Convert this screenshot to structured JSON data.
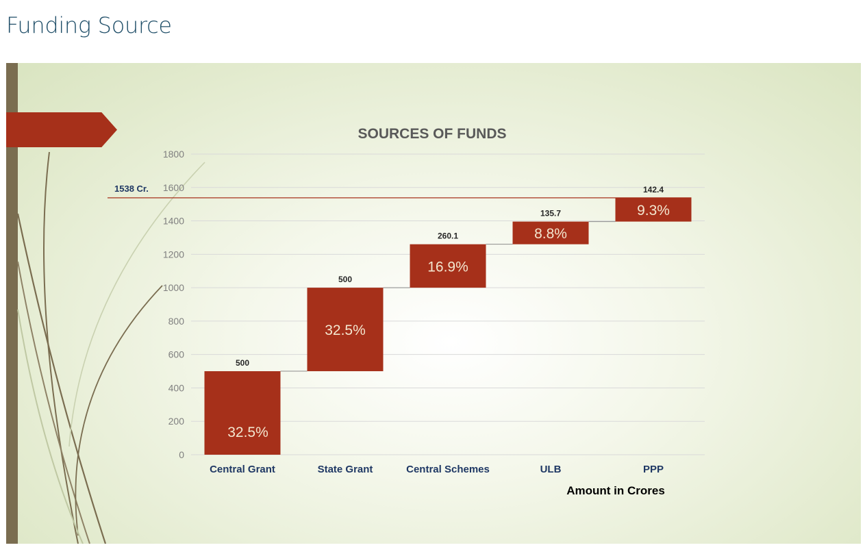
{
  "page": {
    "heading": "Funding Source"
  },
  "colors": {
    "bar": "#a6301a",
    "accent_bar": "#7a6d50",
    "flag": "#a6301a",
    "reference_line": "#a6301a"
  },
  "chart_data": {
    "type": "bar",
    "variant": "waterfall",
    "title": "SOURCES OF FUNDS",
    "categories": [
      "Central Grant",
      "State Grant",
      "Central Schemes",
      "ULB",
      "PPP"
    ],
    "values": [
      500,
      500,
      260.1,
      135.7,
      142.4
    ],
    "value_labels": [
      "500",
      "500",
      "260.1",
      "135.7",
      "142.4"
    ],
    "percent_labels": [
      "32.5%",
      "32.5%",
      "16.9%",
      "8.8%",
      "9.3%"
    ],
    "ylim": [
      0,
      1800
    ],
    "yticks": [
      0,
      200,
      400,
      600,
      800,
      1000,
      1200,
      1400,
      1600,
      1800
    ],
    "reference_line": {
      "value": 1538,
      "label": "1538 Cr."
    },
    "unit_label": "Amount in Crores",
    "grid": true,
    "xlabel": "",
    "ylabel": ""
  }
}
